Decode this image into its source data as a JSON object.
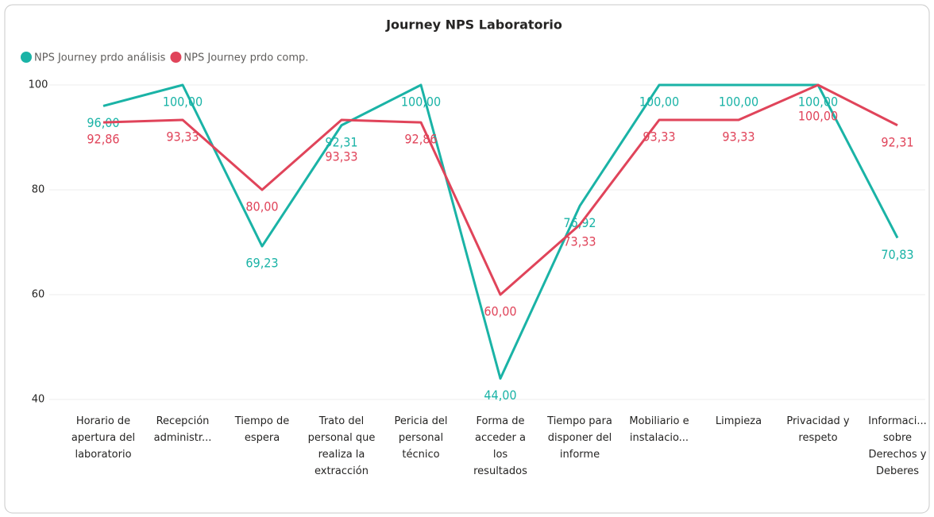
{
  "chart_data": {
    "type": "line",
    "title": "Journey NPS Laboratorio",
    "categories": [
      "Horario de apertura del laboratorio",
      "Recepción administr...",
      "Tiempo de espera",
      "Trato del personal que realiza la extracción",
      "Pericia del personal técnico",
      "Forma de acceder a los resultados",
      "Tiempo para disponer del informe",
      "Mobiliario e instalacio...",
      "Limpieza",
      "Privacidad y respeto",
      "Informaci... sobre Derechos y Deberes"
    ],
    "series": [
      {
        "name": "NPS Journey prdo análisis",
        "color": "#1ab3a6",
        "values": [
          96.0,
          100.0,
          69.23,
          92.31,
          100.0,
          44.0,
          76.92,
          100.0,
          100.0,
          100.0,
          70.83
        ],
        "value_labels": [
          "96,00",
          "100,00",
          "69,23",
          "92,31",
          "100,00",
          "44,00",
          "76,92",
          "100,00",
          "100,00",
          "100,00",
          "70,83"
        ]
      },
      {
        "name": "NPS Journey prdo comp.",
        "color": "#e0445a",
        "values": [
          92.86,
          93.33,
          80.0,
          93.33,
          92.86,
          60.0,
          73.33,
          93.33,
          93.33,
          100.0,
          92.31
        ],
        "value_labels": [
          "92,86",
          "93,33",
          "80,00",
          "93,33",
          "92,86",
          "60,00",
          "73,33",
          "93,33",
          "93,33",
          "100,00",
          "92,31"
        ]
      }
    ],
    "ylim": [
      40,
      100
    ],
    "yticks": [
      40,
      60,
      80,
      100
    ],
    "grid": true
  }
}
